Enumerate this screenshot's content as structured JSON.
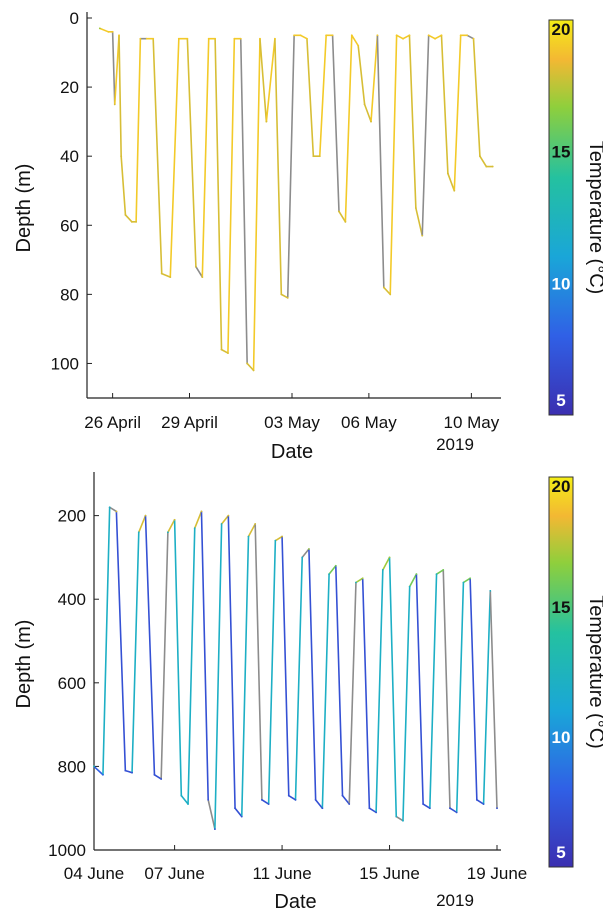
{
  "chart_data": [
    {
      "type": "line",
      "panel": "top",
      "xlabel": "Date",
      "ylabel": "Depth (m)",
      "year_label": "2019",
      "x_ticks": [
        "26 April",
        "29 April",
        "03 May",
        "06 May",
        "10 May"
      ],
      "x_tick_values": [
        "2019-04-26",
        "2019-04-29",
        "2019-05-03",
        "2019-05-06",
        "2019-05-10"
      ],
      "xlim": [
        "2019-04-25",
        "2019-05-11"
      ],
      "y_ticks": [
        "0",
        "20",
        "40",
        "60",
        "80",
        "100"
      ],
      "y_tick_values": [
        0,
        20,
        40,
        60,
        80,
        100
      ],
      "ylim": [
        0,
        110
      ],
      "y_reversed": true,
      "colorbar": {
        "label": "Temperature (°C)",
        "ticks": [
          "5",
          "10",
          "15",
          "20"
        ],
        "tick_values": [
          5,
          10,
          15,
          20
        ],
        "range": [
          5,
          20
        ]
      },
      "series": [
        {
          "x": [
            "2019-04-25T12:00",
            "2019-04-25T20:00",
            "2019-04-26T00:00",
            "2019-04-26T02:00",
            "2019-04-26T06:00",
            "2019-04-26T08:00",
            "2019-04-26T12:00",
            "2019-04-26T18:00",
            "2019-04-26T22:00",
            "2019-04-27T02:00",
            "2019-04-27T08:00",
            "2019-04-27T14:00",
            "2019-04-27T22:00",
            "2019-04-28T06:00",
            "2019-04-28T14:00",
            "2019-04-28T22:00",
            "2019-04-29T06:00",
            "2019-04-29T12:00",
            "2019-04-29T18:00",
            "2019-04-30T00:00",
            "2019-04-30T06:00",
            "2019-04-30T12:00",
            "2019-04-30T18:00",
            "2019-05-01T00:00",
            "2019-05-01T06:00",
            "2019-05-01T12:00",
            "2019-05-01T18:00",
            "2019-05-02T00:00",
            "2019-05-02T08:00",
            "2019-05-02T14:00",
            "2019-05-02T20:00",
            "2019-05-03T02:00",
            "2019-05-03T08:00",
            "2019-05-03T14:00",
            "2019-05-03T20:00",
            "2019-05-04T02:00",
            "2019-05-04T08:00",
            "2019-05-04T14:00",
            "2019-05-04T20:00",
            "2019-05-05T02:00",
            "2019-05-05T08:00",
            "2019-05-05T14:00",
            "2019-05-05T20:00",
            "2019-05-06T02:00",
            "2019-05-06T08:00",
            "2019-05-06T14:00",
            "2019-05-06T20:00",
            "2019-05-07T02:00",
            "2019-05-07T08:00",
            "2019-05-07T14:00",
            "2019-05-07T20:00",
            "2019-05-08T02:00",
            "2019-05-08T08:00",
            "2019-05-08T14:00",
            "2019-05-08T20:00",
            "2019-05-09T02:00",
            "2019-05-09T08:00",
            "2019-05-09T14:00",
            "2019-05-09T20:00",
            "2019-05-10T02:00",
            "2019-05-10T08:00",
            "2019-05-10T14:00",
            "2019-05-10T20:00"
          ],
          "y": [
            3,
            4,
            4,
            25,
            5,
            40,
            57,
            59,
            59,
            6,
            6,
            6,
            74,
            75,
            6,
            6,
            72,
            75,
            6,
            6,
            96,
            97,
            6,
            6,
            100,
            102,
            6,
            30,
            6,
            80,
            81,
            5,
            5,
            6,
            40,
            40,
            5,
            5,
            56,
            59,
            5,
            8,
            25,
            30,
            5,
            78,
            80,
            5,
            6,
            5,
            55,
            63,
            5,
            6,
            5,
            45,
            50,
            5,
            5,
            6,
            40,
            43,
            43
          ],
          "temps": [
            17,
            19,
            19,
            18,
            19,
            18,
            18,
            18,
            18,
            19,
            19,
            19,
            18,
            18,
            19,
            19,
            18,
            18,
            19,
            19,
            18,
            18,
            19,
            19,
            18,
            18,
            19,
            18,
            19,
            18,
            18,
            19,
            19,
            19,
            18,
            18,
            19,
            19,
            18,
            18,
            19,
            19,
            18,
            18,
            19,
            18,
            18,
            19,
            19,
            19,
            18,
            18,
            19,
            19,
            19,
            18,
            18,
            19,
            19,
            19,
            18,
            18,
            18
          ]
        }
      ]
    },
    {
      "type": "line",
      "panel": "bottom",
      "xlabel": "Date",
      "ylabel": "Depth (m)",
      "year_label": "2019",
      "x_ticks": [
        "04 June",
        "07 June",
        "11 June",
        "15 June",
        "19 June"
      ],
      "x_tick_values": [
        "2019-06-04",
        "2019-06-07",
        "2019-06-11",
        "2019-06-15",
        "2019-06-19"
      ],
      "xlim": [
        "2019-06-04",
        "2019-06-19"
      ],
      "y_ticks": [
        "200",
        "400",
        "600",
        "800",
        "1000"
      ],
      "y_tick_values": [
        200,
        400,
        600,
        800,
        1000
      ],
      "ylim": [
        110,
        1000
      ],
      "y_reversed": true,
      "colorbar": {
        "label": "Temperature (°C)",
        "ticks": [
          "5",
          "10",
          "15",
          "20"
        ],
        "tick_values": [
          5,
          10,
          15,
          20
        ],
        "range": [
          5,
          20
        ]
      },
      "series": [
        {
          "x": [
            "2019-06-04T00:00",
            "2019-06-04T08:00",
            "2019-06-04T14:00",
            "2019-06-04T20:00",
            "2019-06-05T04:00",
            "2019-06-05T10:00",
            "2019-06-05T16:00",
            "2019-06-05T22:00",
            "2019-06-06T06:00",
            "2019-06-06T12:00",
            "2019-06-06T18:00",
            "2019-06-07T00:00",
            "2019-06-07T06:00",
            "2019-06-07T12:00",
            "2019-06-07T18:00",
            "2019-06-08T00:00",
            "2019-06-08T06:00",
            "2019-06-08T12:00",
            "2019-06-08T18:00",
            "2019-06-09T00:00",
            "2019-06-09T06:00",
            "2019-06-09T12:00",
            "2019-06-09T18:00",
            "2019-06-10T00:00",
            "2019-06-10T06:00",
            "2019-06-10T12:00",
            "2019-06-10T18:00",
            "2019-06-11T00:00",
            "2019-06-11T06:00",
            "2019-06-11T12:00",
            "2019-06-11T18:00",
            "2019-06-12T00:00",
            "2019-06-12T06:00",
            "2019-06-12T12:00",
            "2019-06-12T18:00",
            "2019-06-13T00:00",
            "2019-06-13T06:00",
            "2019-06-13T12:00",
            "2019-06-13T18:00",
            "2019-06-14T00:00",
            "2019-06-14T06:00",
            "2019-06-14T12:00",
            "2019-06-14T18:00",
            "2019-06-15T00:00",
            "2019-06-15T06:00",
            "2019-06-15T12:00",
            "2019-06-15T18:00",
            "2019-06-16T00:00",
            "2019-06-16T06:00",
            "2019-06-16T12:00",
            "2019-06-16T18:00",
            "2019-06-17T00:00",
            "2019-06-17T06:00",
            "2019-06-17T12:00",
            "2019-06-17T18:00",
            "2019-06-18T00:00",
            "2019-06-18T06:00",
            "2019-06-18T12:00",
            "2019-06-18T18:00",
            "2019-06-19T00:00"
          ],
          "y": [
            800,
            820,
            180,
            190,
            810,
            815,
            240,
            200,
            820,
            830,
            240,
            210,
            870,
            890,
            230,
            190,
            880,
            950,
            220,
            200,
            900,
            920,
            250,
            220,
            880,
            890,
            260,
            250,
            870,
            880,
            300,
            280,
            880,
            900,
            340,
            320,
            870,
            890,
            360,
            350,
            900,
            910,
            330,
            300,
            920,
            930,
            370,
            340,
            890,
            900,
            340,
            330,
            900,
            910,
            360,
            350,
            880,
            890,
            380,
            900
          ],
          "temps": [
            13,
            8,
            12,
            18,
            7,
            7,
            12,
            18,
            7,
            7,
            12,
            18,
            12,
            12,
            12,
            18,
            7,
            7,
            12,
            18,
            7,
            7,
            12,
            18,
            7,
            7,
            12,
            18,
            7,
            7,
            12,
            17,
            7,
            7,
            12,
            16,
            7,
            7,
            12,
            17,
            7,
            7,
            12,
            17,
            12,
            12,
            12,
            16,
            7,
            7,
            12,
            16,
            7,
            7,
            12,
            16,
            7,
            7,
            12,
            7
          ]
        }
      ]
    }
  ]
}
